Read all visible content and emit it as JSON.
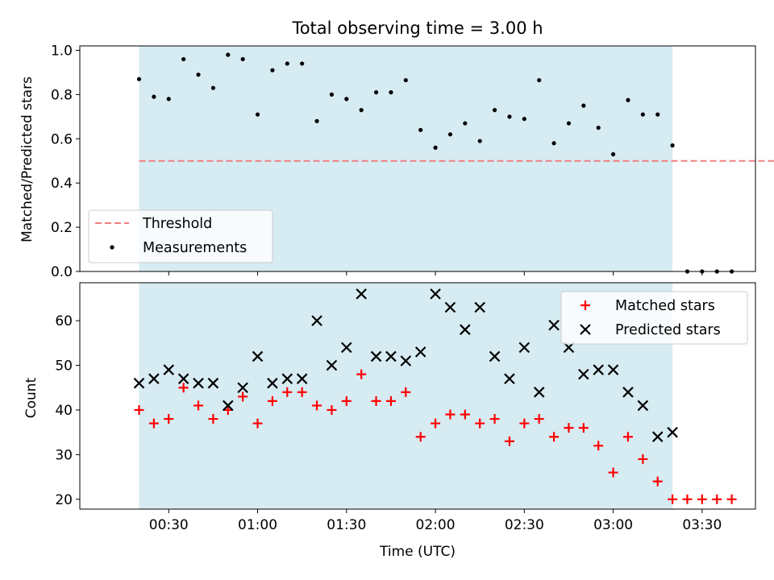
{
  "chart_data": {
    "type": "scatter",
    "title": "Total observing time = 3.00 h",
    "xlabel": "Time (UTC)",
    "x_tick_labels": [
      "00:30",
      "01:00",
      "01:30",
      "02:00",
      "02:30",
      "03:00",
      "03:30"
    ],
    "x_tick_minutes": [
      30,
      60,
      90,
      120,
      150,
      180,
      210
    ],
    "xlim_minutes": [
      0,
      228
    ],
    "shaded_range_minutes": [
      20,
      200
    ],
    "shade_color": "#add8e6",
    "top_panel": {
      "ylabel": "Matched/Predicted stars",
      "ylim": [
        0,
        1.02
      ],
      "yticks": [
        0.0,
        0.2,
        0.4,
        0.6,
        0.8,
        1.0
      ],
      "y_tick_labels": [
        "0.0",
        "0.2",
        "0.4",
        "0.6",
        "0.8",
        "1.0"
      ],
      "threshold": {
        "name": "Threshold",
        "value": 0.5,
        "x_start": 20,
        "x_end": 235,
        "color": "#f08080"
      },
      "measurements": {
        "name": "Measurements",
        "color": "#000000",
        "x": [
          20,
          25,
          30,
          35,
          40,
          45,
          50,
          55,
          60,
          65,
          70,
          75,
          80,
          85,
          90,
          95,
          100,
          105,
          110,
          115,
          120,
          125,
          130,
          135,
          140,
          145,
          150,
          155,
          160,
          165,
          170,
          175,
          180,
          185,
          190,
          195,
          200,
          205,
          210,
          215,
          220
        ],
        "y": [
          0.87,
          0.79,
          0.78,
          0.96,
          0.89,
          0.83,
          0.98,
          0.96,
          0.71,
          0.91,
          0.94,
          0.94,
          0.68,
          0.8,
          0.78,
          0.73,
          0.81,
          0.81,
          0.865,
          0.64,
          0.56,
          0.62,
          0.67,
          0.59,
          0.73,
          0.7,
          0.69,
          0.865,
          0.58,
          0.67,
          0.75,
          0.65,
          0.53,
          0.775,
          0.71,
          0.71,
          0.57,
          0.0,
          0.0,
          0.0,
          0.0
        ]
      },
      "legend": {
        "placement": "lower-left",
        "entries": [
          "Threshold",
          "Measurements"
        ]
      }
    },
    "bottom_panel": {
      "ylabel": "Count",
      "ylim": [
        17.8,
        68.5
      ],
      "yticks": [
        20,
        30,
        40,
        50,
        60
      ],
      "y_tick_labels": [
        "20",
        "30",
        "40",
        "50",
        "60"
      ],
      "series": [
        {
          "name": "Matched stars",
          "marker": "plus",
          "color": "#ff0000",
          "x": [
            20,
            25,
            30,
            35,
            40,
            45,
            50,
            55,
            60,
            65,
            70,
            75,
            80,
            85,
            90,
            95,
            100,
            105,
            110,
            115,
            120,
            125,
            130,
            135,
            140,
            145,
            150,
            155,
            160,
            165,
            170,
            175,
            180,
            185,
            190,
            195,
            200,
            205,
            210,
            215,
            220
          ],
          "y": [
            40,
            37,
            38,
            45,
            41,
            38,
            40,
            43,
            37,
            42,
            44,
            44,
            41,
            40,
            42,
            48,
            42,
            42,
            44,
            34,
            37,
            39,
            39,
            37,
            38,
            33,
            37,
            38,
            34,
            36,
            36,
            32,
            26,
            34,
            29,
            24,
            20,
            20,
            20,
            20,
            20
          ]
        },
        {
          "name": "Predicted stars",
          "marker": "x",
          "color": "#000000",
          "x": [
            20,
            25,
            30,
            35,
            40,
            45,
            50,
            55,
            60,
            65,
            70,
            75,
            80,
            85,
            90,
            95,
            100,
            105,
            110,
            115,
            120,
            125,
            130,
            135,
            140,
            145,
            150,
            155,
            160,
            165,
            170,
            175,
            180,
            185,
            190,
            195,
            200
          ],
          "y": [
            46,
            47,
            49,
            47,
            46,
            46,
            41,
            45,
            52,
            46,
            47,
            47,
            60,
            50,
            54,
            66,
            52,
            52,
            51,
            53,
            66,
            63,
            58,
            63,
            52,
            47,
            54,
            44,
            59,
            54,
            48,
            49,
            49,
            44,
            41,
            34,
            35
          ]
        }
      ],
      "legend": {
        "placement": "upper-right",
        "entries": [
          "Matched stars",
          "Predicted stars"
        ]
      }
    }
  }
}
